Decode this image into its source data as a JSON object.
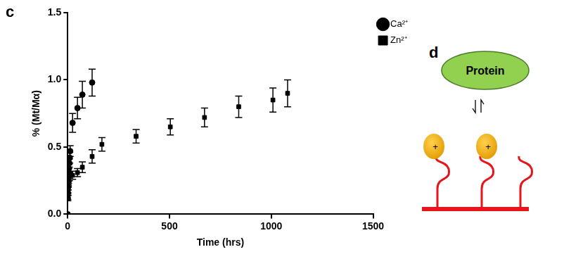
{
  "chart_data": {
    "type": "scatter",
    "title": "c",
    "x_label": "Time (hrs)",
    "y_label": "% (Mt/Mα)",
    "xlim": [
      0,
      1500
    ],
    "xticks": [
      0,
      500,
      1000,
      1500
    ],
    "ylim": [
      0,
      1.5
    ],
    "yticks": [
      {
        "value": 0,
        "label": "0.0"
      },
      {
        "value": 0.5,
        "label": "0.5"
      },
      {
        "value": 1,
        "label": "1.0"
      },
      {
        "value": 1.5,
        "label": "1.5"
      }
    ],
    "grid": false,
    "legend": "upper right",
    "series": [
      {
        "name": "Ca²⁺",
        "color": "#000000",
        "marker": "circle",
        "x": [
          0,
          0.5,
          1,
          2,
          3,
          4,
          5,
          6,
          8,
          10,
          12,
          24,
          48,
          72,
          120
        ],
        "values": [
          0,
          0.12,
          0.16,
          0.2,
          0.24,
          0.28,
          0.31,
          0.34,
          0.38,
          0.42,
          0.47,
          0.68,
          0.79,
          0.89,
          0.98
        ],
        "errors": [
          0,
          0.02,
          0.02,
          0.02,
          0.03,
          0.03,
          0.03,
          0.03,
          0.03,
          0.04,
          0.04,
          0.07,
          0.08,
          0.1,
          0.1
        ]
      },
      {
        "name": "Zn²⁺",
        "color": "#000000",
        "marker": "square",
        "x": [
          0,
          0.5,
          1,
          2,
          4,
          8,
          24,
          48,
          72,
          120,
          168,
          336,
          504,
          672,
          840,
          1008,
          1080
        ],
        "values": [
          0,
          0.13,
          0.18,
          0.22,
          0.26,
          0.28,
          0.29,
          0.31,
          0.35,
          0.43,
          0.52,
          0.58,
          0.65,
          0.72,
          0.8,
          0.85,
          0.9
        ],
        "errors": [
          0,
          0.02,
          0.02,
          0.02,
          0.03,
          0.03,
          0.03,
          0.03,
          0.04,
          0.05,
          0.05,
          0.05,
          0.06,
          0.07,
          0.08,
          0.09,
          0.1
        ]
      }
    ]
  },
  "diagram": {
    "label": "d",
    "protein": "Protein",
    "ions": [
      "+",
      "+"
    ]
  }
}
